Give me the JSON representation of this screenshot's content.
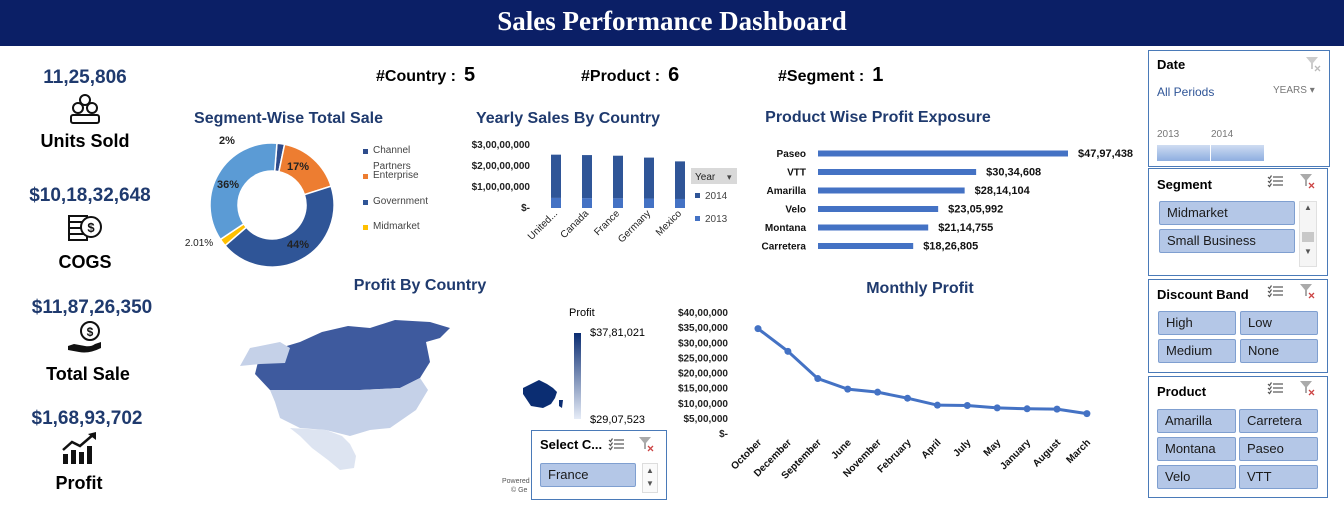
{
  "header": {
    "title": "Sales Performance Dashboard"
  },
  "kpis": [
    {
      "value": "11,25,806",
      "label": "Units Sold",
      "icon": "coins-stack-icon"
    },
    {
      "value": "$10,18,32,648",
      "label": "COGS",
      "icon": "cash-stack-icon"
    },
    {
      "value": "$11,87,26,350",
      "label": "Total Sale",
      "icon": "hand-coin-icon"
    },
    {
      "value": "$1,68,93,702",
      "label": "Profit",
      "icon": "growth-chart-icon"
    }
  ],
  "counts": {
    "country_label": "#Country :",
    "country_value": "5",
    "product_label": "#Product :",
    "product_value": "6",
    "segment_label": "#Segment :",
    "segment_value": "1"
  },
  "chart_data": [
    {
      "type": "pie",
      "title": "Segment-Wise Total Sale",
      "categories": [
        "Channel Partners",
        "Enterprise",
        "Government",
        "Midmarket",
        "Small Business"
      ],
      "values": [
        2,
        17,
        44,
        2.01,
        36
      ],
      "labels": [
        "2%",
        "17%",
        "44%",
        "2.01%",
        "36%"
      ],
      "colors": [
        "#2e4c8c",
        "#ed7d31",
        "#2f5597",
        "#ffc000",
        "#5b9bd5"
      ],
      "legend": [
        "Channel Partners",
        "Enterprise",
        "Government",
        "Midmarket"
      ]
    },
    {
      "type": "bar",
      "title": "Yearly Sales By Country",
      "categories": [
        "United...",
        "Canada",
        "France",
        "Germany",
        "Mexico"
      ],
      "series": [
        {
          "name": "2013",
          "values": [
            4800000,
            4700000,
            4600000,
            4500000,
            4300000
          ],
          "color": "#4472c4"
        },
        {
          "name": "2014",
          "values": [
            20600000,
            20500000,
            20300000,
            19500000,
            17900000
          ],
          "color": "#2f5597"
        }
      ],
      "ylim": [
        0,
        30000000
      ],
      "yticks": [
        "$3,00,00,000",
        "$2,00,00,000",
        "$1,00,00,000",
        "$-"
      ],
      "legend_title": "Year",
      "legend": [
        "2014",
        "2013"
      ]
    },
    {
      "type": "bar",
      "title": "Product Wise Profit Exposure",
      "categories": [
        "Paseo",
        "VTT",
        "Amarilla",
        "Velo",
        "Montana",
        "Carretera"
      ],
      "values": [
        4797438,
        3034608,
        2814104,
        2305992,
        2114755,
        1826805
      ],
      "labels": [
        "$47,97,438",
        "$30,34,608",
        "$28,14,104",
        "$23,05,992",
        "$21,14,755",
        "$18,26,805"
      ],
      "color": "#4472c4"
    },
    {
      "type": "line",
      "title": "Monthly Profit",
      "categories": [
        "October",
        "December",
        "September",
        "June",
        "November",
        "February",
        "April",
        "July",
        "May",
        "January",
        "August",
        "March"
      ],
      "values": [
        34500000,
        27000000,
        18000000,
        14500000,
        13500000,
        11500000,
        9200000,
        9100000,
        8300000,
        8000000,
        7900000,
        6400000
      ],
      "ylim": [
        0,
        40000000
      ],
      "yticks": [
        "$40,00,000",
        "$35,00,000",
        "$30,00,000",
        "$25,00,000",
        "$20,00,000",
        "$15,00,000",
        "$10,00,000",
        "$5,00,000",
        "$-"
      ],
      "color": "#4472c4"
    }
  ],
  "map": {
    "title": "Profit By Country",
    "legend_title": "Profit",
    "legend_max": "$37,81,021",
    "legend_min": "$29,07,523",
    "credit": "Powered",
    "credit2": "© Ge"
  },
  "select_country": {
    "title": "Select C...",
    "items": [
      "France"
    ]
  },
  "slicers": {
    "date": {
      "title": "Date",
      "period": "All Periods",
      "unit": "YEARS",
      "years": [
        "2013",
        "2014"
      ]
    },
    "segment": {
      "title": "Segment",
      "items": [
        "Midmarket",
        "Small Business"
      ]
    },
    "discount": {
      "title": "Discount Band",
      "items": [
        "High",
        "Low",
        "Medium",
        "None"
      ]
    },
    "product": {
      "title": "Product",
      "items": [
        "Amarilla",
        "Carretera",
        "Montana",
        "Paseo",
        "Velo",
        "VTT"
      ]
    }
  }
}
